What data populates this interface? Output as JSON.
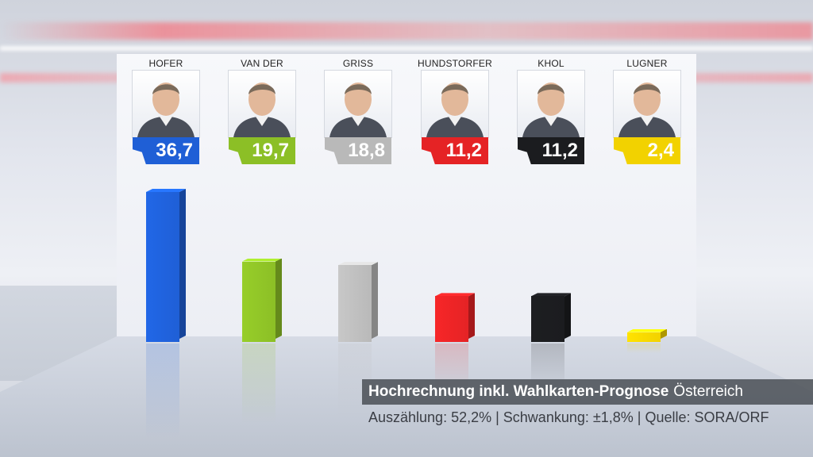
{
  "chart_data": {
    "type": "bar",
    "title": "Hochrechnung inkl. Wahlkarten-Prognose",
    "subtitle": "Österreich",
    "categories": [
      "HOFER",
      "VAN DER BELLEN",
      "GRISS",
      "HUNDSTORFER",
      "KHOL",
      "LUGNER"
    ],
    "values": [
      36.7,
      19.7,
      18.8,
      11.2,
      11.2,
      2.4
    ],
    "value_labels": [
      "36,7",
      "19,7",
      "18,8",
      "11,2",
      "11,2",
      "2,4"
    ],
    "colors": [
      "#1f5fd6",
      "#8cbf26",
      "#b9b9b9",
      "#e52325",
      "#1b1c1f",
      "#f2d200"
    ],
    "ylim": [
      0,
      40
    ],
    "grid": false,
    "legend": "none"
  },
  "caption": {
    "title_bold": "Hochrechnung inkl. Wahlkarten-Prognose",
    "region": "Österreich",
    "details": "Auszählung: 52,2% | Schwankung: ±1,8% | Quelle: SORA/ORF"
  },
  "icons": [
    "candidate-photo-icon"
  ]
}
